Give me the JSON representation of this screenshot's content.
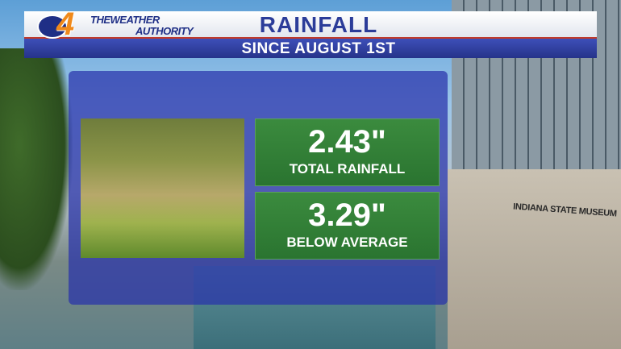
{
  "header": {
    "logo_number": "4",
    "brand_line1": "THEWEATHER",
    "brand_line2": "AUTHORITY",
    "title": "RAINFALL",
    "subtitle": "SINCE AUGUST 1ST"
  },
  "stats": [
    {
      "value": "2.43\"",
      "label": "TOTAL RAINFALL"
    },
    {
      "value": "3.29\"",
      "label": "BELOW AVERAGE"
    }
  ],
  "background": {
    "sign": "INDIANA STATE MUSEUM"
  }
}
